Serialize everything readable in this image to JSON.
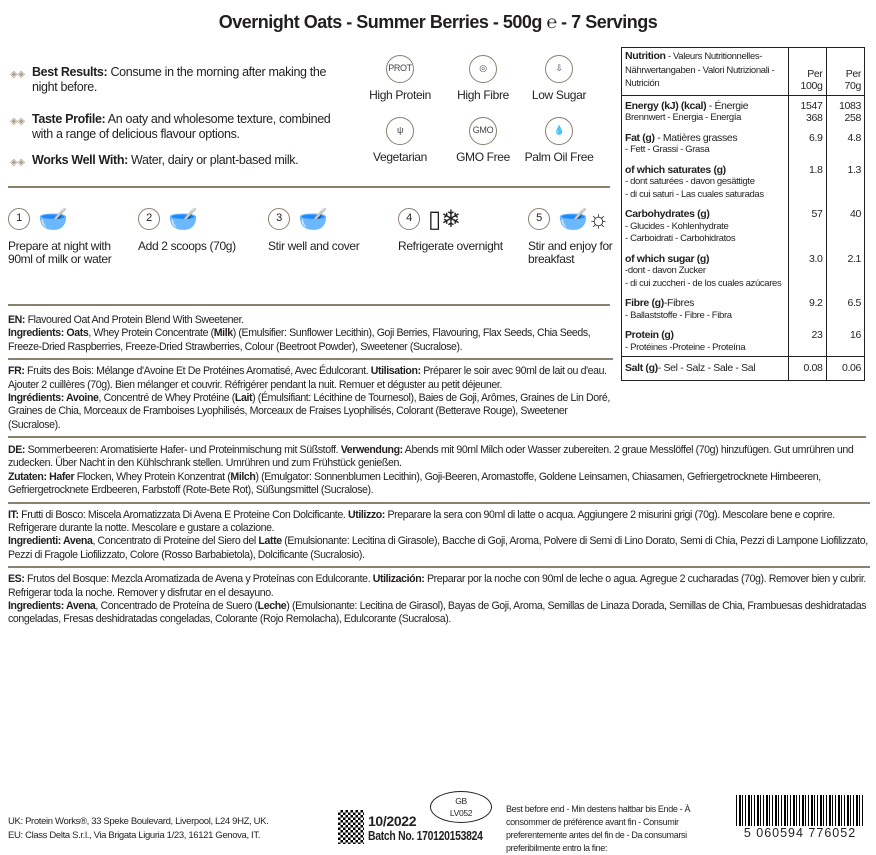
{
  "title": "Overnight Oats - Summer Berries - 500g ℮ - 7 Servings",
  "features": [
    {
      "icon": "diamond-bullet-icon",
      "bold": "Best Results:",
      "text": " Consume in the morning after making the night before."
    },
    {
      "icon": "diamond-bullet-icon",
      "bold": "Taste Profile:",
      "text": " An oaty and wholesome texture, combined with a range of delicious flavour options."
    },
    {
      "icon": "diamond-bullet-icon",
      "bold": "Works Well With:",
      "text": " Water, dairy or plant-based milk."
    }
  ],
  "badges": [
    {
      "label": "High Protein",
      "glyph": "PROT",
      "icon": "high-protein-icon"
    },
    {
      "label": "High Fibre",
      "glyph": "◎",
      "icon": "high-fibre-icon"
    },
    {
      "label": "Low Sugar",
      "glyph": "⇩",
      "icon": "low-sugar-icon"
    },
    {
      "label": "Vegetarian",
      "glyph": "ψ",
      "icon": "vegetarian-icon"
    },
    {
      "label": "GMO Free",
      "glyph": "GMO",
      "icon": "gmo-free-icon"
    },
    {
      "label": "Palm Oil Free",
      "glyph": "💧",
      "icon": "palm-oil-free-icon"
    }
  ],
  "steps": [
    {
      "num": "1",
      "label": "Prepare at night with 90ml of milk or water",
      "icon": "pour-into-bowl-icon",
      "glyph": "🥣"
    },
    {
      "num": "2",
      "label": "Add 2 scoops (70g)",
      "icon": "scoop-bowl-icon",
      "glyph": "🥣"
    },
    {
      "num": "3",
      "label": "Stir well and cover",
      "icon": "stir-bowl-icon",
      "glyph": "🥣"
    },
    {
      "num": "4",
      "label": "Refrigerate overnight",
      "icon": "fridge-icon",
      "glyph": "▯❄"
    },
    {
      "num": "5",
      "label": "Stir and enjoy for breakfast",
      "icon": "bowl-sun-icon",
      "glyph": "🥣☼"
    }
  ],
  "langs": [
    [
      [
        {
          "t": "EN:",
          "b": 1
        },
        {
          "t": " Flavoured Oat And Protein Blend With Sweetener."
        }
      ],
      [
        {
          "t": "Ingredients: Oats",
          "b": 1
        },
        {
          "t": ", Whey Protein Concentrate ("
        },
        {
          "t": "Milk",
          "b": 1
        },
        {
          "t": ") (Emulsifier: Sunflower Lecithin), Goji Berries, Flavouring, Flax Seeds, Chia Seeds, Freeze-Dried Raspberries, Freeze-Dried Strawberries, Colour (Beetroot Powder), Sweetener (Sucralose)."
        }
      ]
    ],
    [
      [
        {
          "t": "FR:",
          "b": 1
        },
        {
          "t": " Fruits des Bois: Mélange d'Avoine Et De Protéines Aromatisé, Avec Édulcorant. "
        },
        {
          "t": "Utilisation:",
          "b": 1
        },
        {
          "t": " Préparer le soir avec 90ml de lait ou d'eau. Ajouter 2 cuillères (70g). Bien mélanger et couvrir. Réfrigérer pendant la nuit. Remuer et déguster au petit déjeuner."
        }
      ],
      [
        {
          "t": "Ingrédients: Avoine",
          "b": 1
        },
        {
          "t": ", Concentré de Whey Protéine ("
        },
        {
          "t": "Lait",
          "b": 1
        },
        {
          "t": ") (Émulsifiant: Lécithine de Tournesol), Baies de Goji, Arômes, Graines de Lin Doré, Graines de Chia, Morceaux de Framboises Lyophilisés, Morceaux de Fraises Lyophilisés, Colorant (Betterave Rouge), Sweetener (Sucralose)."
        }
      ]
    ],
    [
      [
        {
          "t": "DE:",
          "b": 1
        },
        {
          "t": " Sommerbeeren: Aromatisierte Hafer- und Proteinmischung mit Süßstoff. "
        },
        {
          "t": "Verwendung:",
          "b": 1
        },
        {
          "t": " Abends mit 90ml Milch oder Wasser zubereiten. 2 graue Messlöffel (70g) hinzufügen. Gut umrühren und zudecken. Über Nacht in den Kühlschrank stellen. Umrühren und zum Frühstück genießen."
        }
      ],
      [
        {
          "t": "Zutaten: Hafer",
          "b": 1
        },
        {
          "t": " Flocken, Whey Protein Konzentrat ("
        },
        {
          "t": "Milch",
          "b": 1
        },
        {
          "t": ") (Emulgator: Sonnenblumen Lecithin), Goji-Beeren, Aromastoffe, Goldene Leinsamen, Chiasamen, Gefriergetrocknete Himbeeren, Gefriergetrocknete Erdbeeren, Farbstoff (Rote-Bete Rot), Süßungsmittel (Sucralose)."
        }
      ]
    ],
    [
      [
        {
          "t": "IT:",
          "b": 1
        },
        {
          "t": " Frutti di Bosco: Miscela Aromatizzata Di Avena E Proteine Con Dolcificante. "
        },
        {
          "t": "Utilizzo:",
          "b": 1
        },
        {
          "t": " Preparare la sera con 90ml di latte o acqua. Aggiungere 2 misurini grigi (70g). Mescolare bene e coprire. Refrigerare durante la notte. Mescolare e gustare a colazione."
        }
      ],
      [
        {
          "t": "Ingredienti: Avena",
          "b": 1
        },
        {
          "t": ", Concentrato di Proteine del Siero del "
        },
        {
          "t": "Latte",
          "b": 1
        },
        {
          "t": " (Emulsionante: Lecitina di Girasole), Bacche di Goji, Aroma, Polvere di Semi di Lino Dorato, Semi di Chia, Pezzi di Lampone Liofilizzato, Pezzi di Fragole Liofilizzato, Colore (Rosso Barbabietola), Dolcificante (Sucralosio)."
        }
      ]
    ],
    [
      [
        {
          "t": "ES:",
          "b": 1
        },
        {
          "t": " Frutos del Bosque: Mezcla Aromatizada de Avena y Proteínas con Edulcorante. "
        },
        {
          "t": "Utilización:",
          "b": 1
        },
        {
          "t": " Preparar por la noche con 90ml de leche o agua. Agregue 2 cucharadas (70g). Remover bien y cubrir. Refrigerar toda la noche. Remover y disfrutar en el desayuno."
        }
      ],
      [
        {
          "t": "Ingredients: Avena",
          "b": 1
        },
        {
          "t": ", Concentrado de Proteína de Suero ("
        },
        {
          "t": "Leche",
          "b": 1
        },
        {
          "t": ") (Emulsionante: Lecitina de Girasol), Bayas de Goji, Aroma, Semillas de Linaza Dorada, Semillas de Chia, Frambuesas deshidratadas congeladas, Fresas deshidratadas congeladas, Colorante (Rojo Remolacha), Edulcorante (Sucralosa)."
        }
      ]
    ]
  ],
  "nutrition": {
    "header_bold": "Nutrition",
    "header_rest": " - Valeurs Nutritionnelles- Nährwertangaben - Valori Nutrizionali - Nutrición",
    "col1": "Per 100g",
    "col2": "Per 70g",
    "rows": [
      {
        "name": "Energy (kJ) (kcal)",
        "tail": " - Énergie",
        "sub": "Brennwert - Energia - Energía",
        "v1": "1547\n368",
        "v2": "1083\n258"
      },
      {
        "name": "Fat (g)",
        "tail": " - Matières grasses",
        "sub": "- Fett - Grassi - Grasa",
        "v1": "6.9",
        "v2": "4.8"
      },
      {
        "name": "of which saturates (g)",
        "tail": "",
        "sub": "- dont saturées - davon gesättigte\n- di cui saturi - Las cuales saturadas",
        "v1": "1.8",
        "v2": "1.3"
      },
      {
        "name": "Carbohydrates (g)",
        "tail": "",
        "sub": "- Glucides - Kohlenhydrate\n- Carboidrati - Carbohidratos",
        "v1": "57",
        "v2": "40"
      },
      {
        "name": "of which sugar (g)",
        "tail": "",
        "sub": "-dont - davon Zucker\n- di cui zuccheri - de los cuales azúcares",
        "v1": "3.0",
        "v2": "2.1"
      },
      {
        "name": "Fibre (g)",
        "tail": "-Fibres",
        "sub": "- Ballaststoffe - Fibre - Fibra",
        "v1": "9.2",
        "v2": "6.5"
      },
      {
        "name": "Protein (g)",
        "tail": "",
        "sub": "- Protéines -Proteine - Proteína",
        "v1": "23",
        "v2": "16"
      },
      {
        "name": "Salt (g)",
        "tail": "- Sel - Salz - Sale - Sal",
        "sub": "",
        "v1": "0.08",
        "v2": "0.06"
      }
    ]
  },
  "footer": {
    "uk": "UK: Protein Works®, 33 Speke Boulevard, Liverpool, L24 9HZ, UK.",
    "eu": "EU: Class Delta S.r.l., Via Brigata Liguria 1/23, 16121 Genova, IT.",
    "date": "10/2022",
    "batch": "Batch No. 170120153824",
    "oval1": "GB",
    "oval2": "LV052",
    "best_before": "Best before end - Min destens haltbar bis Ende - À consommer de préférence avant fin - Consumir preferentemente antes del fin de - Da consumarsi preferibilmente entro la fine:",
    "barcode": "5 060594 776052"
  },
  "colors": {
    "divider": "#8a8170",
    "text": "#231f20"
  }
}
